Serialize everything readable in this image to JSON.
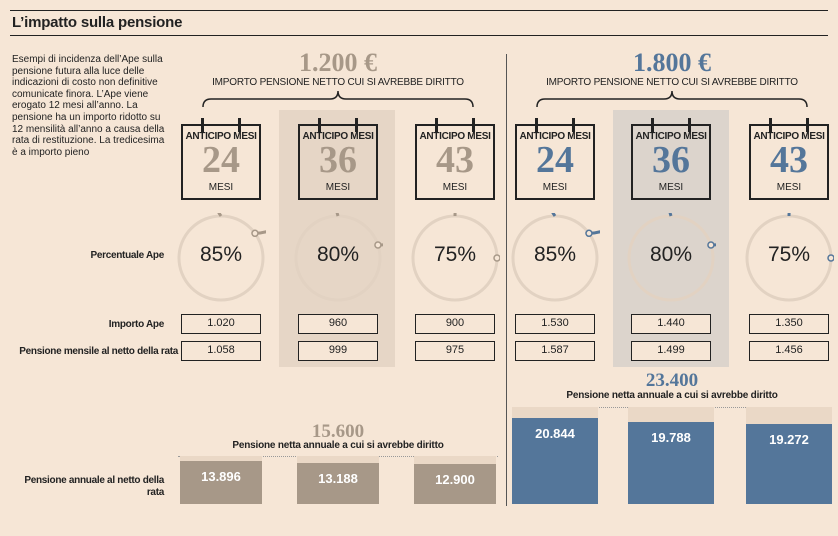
{
  "title": "L’impatto sulla pensione",
  "intro": "Esempi di incidenza dell’Ape sulla pensione futura alla luce delle indicazioni di costo non definitive comunicate finora. L’Ape viene erogato 12 mesi all’anno. La pensione ha un importo ridotto su 12 mensilità all’anno a causa della rata di restituzione. La tredicesima è a importo pieno",
  "row_labels": {
    "percentuale": "Percentuale Ape",
    "importo": "Importo Ape",
    "mensile": "Pensione mensile al netto della rata",
    "annuale": "Pensione annuale al netto della rata"
  },
  "calendar_head": "ANTICIPO MESI",
  "calendar_unit": "MESI",
  "colors": {
    "gray": "#a79888",
    "blue": "#54769a",
    "bg_bar": "#ead8c6"
  },
  "chart_data": [
    {
      "type": "bar",
      "amount_label": "1.200 €",
      "amount_caption": "IMPORTO PENSIONE NETTO CUI SI AVREBBE DIRITTO",
      "categories": [
        "24",
        "36",
        "43"
      ],
      "percentuale_ape": [
        "85%",
        "80%",
        "75%"
      ],
      "percentuale_values": [
        85,
        80,
        75
      ],
      "importo_ape": [
        "1.020",
        "960",
        "900"
      ],
      "pensione_mensile": [
        "1.058",
        "999",
        "975"
      ],
      "total_label": "15.600",
      "total_caption": "Pensione netta annuale a cui si avrebbe diritto",
      "total_value": 15600,
      "values": [
        13896,
        13188,
        12900
      ],
      "value_labels": [
        "13.896",
        "13.188",
        "12.900"
      ],
      "ylim": [
        0,
        15600
      ]
    },
    {
      "type": "bar",
      "amount_label": "1.800 €",
      "amount_caption": "IMPORTO PENSIONE NETTO CUI SI AVREBBE DIRITTO",
      "categories": [
        "24",
        "36",
        "43"
      ],
      "percentuale_ape": [
        "85%",
        "80%",
        "75%"
      ],
      "percentuale_values": [
        85,
        80,
        75
      ],
      "importo_ape": [
        "1.530",
        "1.440",
        "1.350"
      ],
      "pensione_mensile": [
        "1.587",
        "1.499",
        "1.456"
      ],
      "total_label": "23.400",
      "total_caption": "Pensione netta annuale a cui si avrebbe diritto",
      "total_value": 23400,
      "values": [
        20844,
        19788,
        19272
      ],
      "value_labels": [
        "20.844",
        "19.788",
        "19.272"
      ],
      "ylim": [
        0,
        23400
      ]
    }
  ]
}
